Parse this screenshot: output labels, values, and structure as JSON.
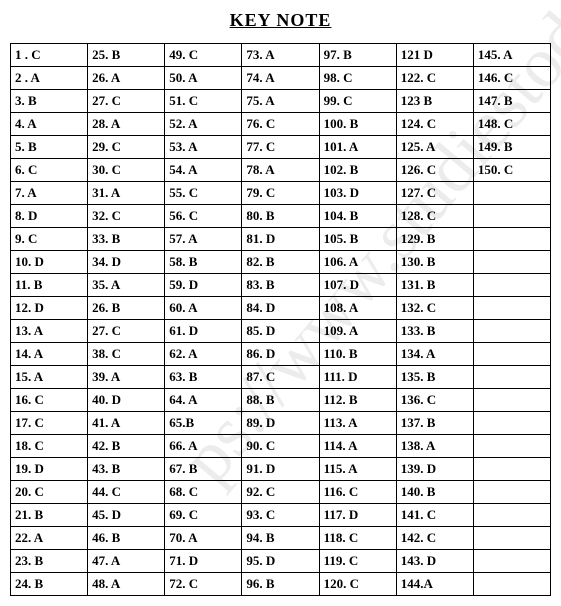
{
  "title": "KEY NOTE",
  "watermark": "ps://www.studiestoday",
  "table": {
    "rows": [
      [
        "1 . C",
        "25. B",
        "49. C",
        "73. A",
        "97. B",
        "121 D",
        "145. A"
      ],
      [
        "2 . A",
        "26. A",
        "50. A",
        "74. A",
        "98. C",
        "122. C",
        "146. C"
      ],
      [
        "3. B",
        "27. C",
        "51. C",
        "75. A",
        "99. C",
        "123 B",
        "147. B"
      ],
      [
        "4. A",
        "28. A",
        "52. A",
        "76. C",
        "100. B",
        "124. C",
        "148. C"
      ],
      [
        "5. B",
        "29. C",
        "53. A",
        "77. C",
        "101. A",
        "125. A",
        "149. B"
      ],
      [
        "6. C",
        "30. C",
        "54. A",
        "78. A",
        "102. B",
        "126. C",
        "150. C"
      ],
      [
        "7. A",
        "31. A",
        "55. C",
        "79. C",
        "103. D",
        "127. C",
        ""
      ],
      [
        "8. D",
        "32. C",
        "56. C",
        "80. B",
        "104. B",
        "128. C",
        ""
      ],
      [
        "9. C",
        "33. B",
        "57. A",
        "81. D",
        "105. B",
        "129. B",
        ""
      ],
      [
        "10. D",
        "34. D",
        "58. B",
        "82. B",
        "106. A",
        "130. B",
        ""
      ],
      [
        "11. B",
        "35. A",
        "59. D",
        "83. B",
        "107. D",
        "131. B",
        ""
      ],
      [
        "12. D",
        "26. B",
        "60. A",
        "84. D",
        "108. A",
        "132. C",
        ""
      ],
      [
        "13. A",
        "27. C",
        "61. D",
        "85. D",
        "109. A",
        "133. B",
        ""
      ],
      [
        "14. A",
        "38. C",
        "62. A",
        "86. D",
        "110. B",
        "134. A",
        ""
      ],
      [
        "15. A",
        "39. A",
        "63. B",
        "87. C",
        "111. D",
        "135. B",
        ""
      ],
      [
        "16. C",
        "40. D",
        "64. A",
        "88. B",
        "112. B",
        "136. C",
        ""
      ],
      [
        "17. C",
        "41. A",
        "65.B",
        "89. D",
        "113. A",
        "137. B",
        ""
      ],
      [
        "18. C",
        "42. B",
        "66. A",
        "90. C",
        "114. A",
        "138. A",
        ""
      ],
      [
        "19. D",
        "43. B",
        "67. B",
        "91. D",
        "115. A",
        "139. D",
        ""
      ],
      [
        "20. C",
        "44. C",
        "68. C",
        "92. C",
        "116. C",
        "140. B",
        ""
      ],
      [
        "21. B",
        "45. D",
        "69. C",
        "93. C",
        "117. D",
        "141. C",
        ""
      ],
      [
        "22. A",
        "46. B",
        "70. A",
        "94. B",
        "118. C",
        "142. C",
        ""
      ],
      [
        "23. B",
        "47. A",
        "71. D",
        "95. D",
        "119. C",
        "143.  D",
        ""
      ],
      [
        "24. B",
        "48. A",
        "72. C",
        "96. B",
        "120. C",
        "144.A",
        ""
      ]
    ]
  }
}
